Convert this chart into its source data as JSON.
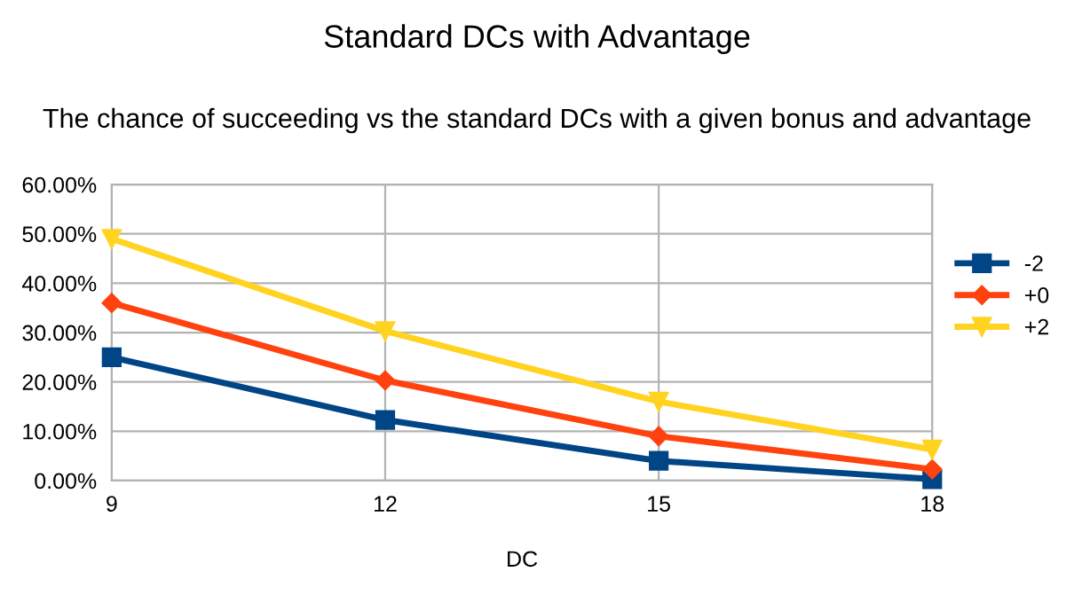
{
  "chart_data": {
    "type": "line",
    "title": "Standard DCs with Advantage",
    "subtitle": "The chance of succeeding vs the standard DCs with a given bonus and advantage",
    "xlabel": "DC",
    "x": [
      9,
      12,
      15,
      18
    ],
    "xlim": [
      9,
      18
    ],
    "xticks": [
      9,
      12,
      15,
      18
    ],
    "ylim": [
      0,
      60
    ],
    "yticks": [
      {
        "value": 0,
        "label": "0.00%"
      },
      {
        "value": 10,
        "label": "10.00%"
      },
      {
        "value": 20,
        "label": "20.00%"
      },
      {
        "value": 30,
        "label": "30.00%"
      },
      {
        "value": 40,
        "label": "40.00%"
      },
      {
        "value": 50,
        "label": "50.00%"
      },
      {
        "value": 60,
        "label": "60.00%"
      }
    ],
    "grid": true,
    "legend": "right",
    "series": [
      {
        "name": "-2",
        "color": "#004586",
        "marker": "square",
        "values": [
          25,
          12.3,
          4,
          0.3
        ]
      },
      {
        "name": "+0",
        "color": "#ff420e",
        "marker": "diamond",
        "values": [
          36,
          20.3,
          9,
          2.3
        ]
      },
      {
        "name": "+2",
        "color": "#ffd320",
        "marker": "triangle",
        "values": [
          49,
          30.3,
          16,
          6.3
        ]
      }
    ]
  }
}
